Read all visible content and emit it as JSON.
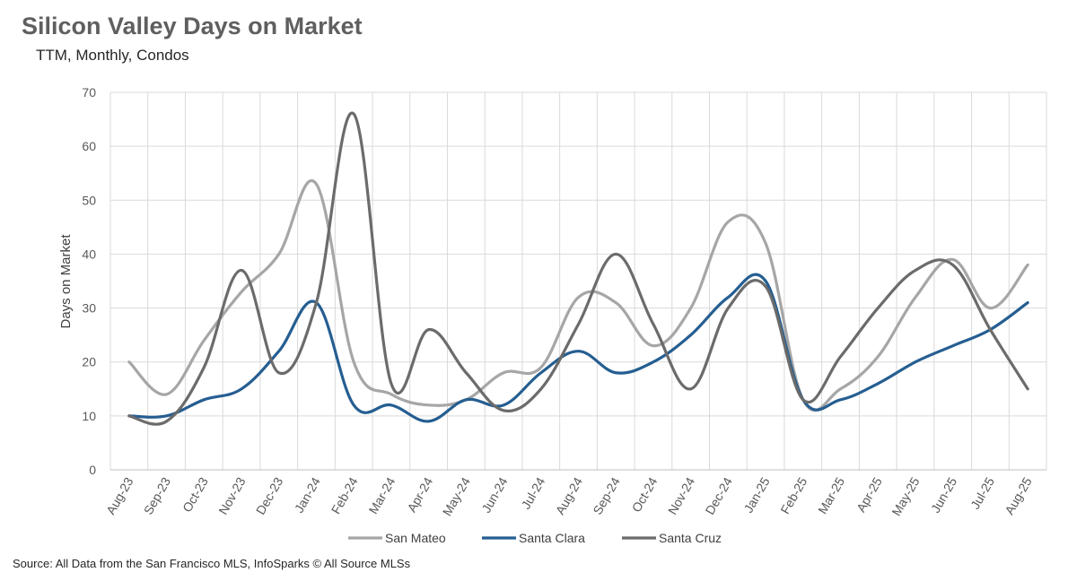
{
  "chart_data": {
    "type": "line",
    "title": "Silicon Valley Days on Market",
    "subtitle": "TTM, Monthly, Condos",
    "ylabel": "Days on Market",
    "xlabel": "",
    "ylim": [
      0,
      70
    ],
    "yticks": [
      0,
      10,
      20,
      30,
      40,
      50,
      60,
      70
    ],
    "grid": true,
    "legend_position": "bottom",
    "categories": [
      "Aug-23",
      "Sep-23",
      "Oct-23",
      "Nov-23",
      "Dec-23",
      "Jan-24",
      "Feb-24",
      "Mar-24",
      "Apr-24",
      "May-24",
      "Jun-24",
      "Jul-24",
      "Aug-24",
      "Sep-24",
      "Oct-24",
      "Nov-24",
      "Dec-24",
      "Jan-25",
      "Feb-25",
      "Mar-25",
      "Apr-25",
      "May-25",
      "Jun-25",
      "Jul-25",
      "Aug-25"
    ],
    "series": [
      {
        "name": "San Mateo",
        "color": "#a6a6a6",
        "values": [
          20,
          14,
          24,
          33,
          40,
          53,
          20,
          14,
          12,
          13,
          18,
          19,
          32,
          31,
          23,
          30,
          46,
          42,
          13,
          15,
          21,
          32,
          39,
          30,
          38
        ]
      },
      {
        "name": "Santa Clara",
        "color": "#255e91",
        "values": [
          10,
          10,
          13,
          15,
          22,
          31,
          12,
          12,
          9,
          13,
          12,
          18,
          22,
          18,
          20,
          25,
          32,
          35,
          13,
          13,
          16,
          20,
          23,
          26,
          31
        ]
      },
      {
        "name": "Santa Cruz",
        "color": "#6b6b6b",
        "values": [
          10,
          9,
          19,
          37,
          18,
          31,
          66,
          16,
          26,
          18,
          11,
          15,
          27,
          40,
          27,
          15,
          30,
          34,
          13,
          21,
          30,
          37,
          38,
          26,
          15
        ]
      }
    ]
  },
  "footer": {
    "source": "Source: All Data from the San Francisco MLS, InfoSparks © All Source MLSs"
  }
}
